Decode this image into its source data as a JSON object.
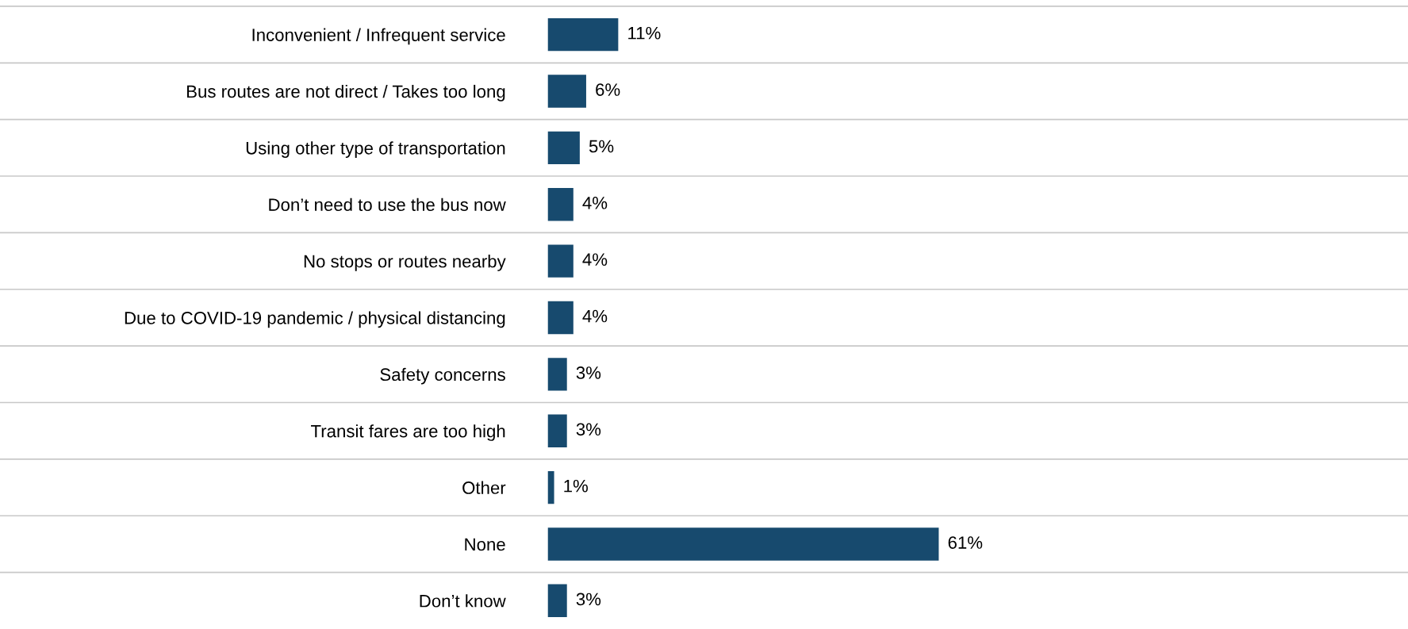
{
  "chart_data": {
    "type": "bar",
    "orientation": "horizontal",
    "categories": [
      "Inconvenient / Infrequent service",
      "Bus routes are not direct / Takes too long",
      "Using other type of transportation",
      "Don’t need to use the bus now",
      "No stops or routes nearby",
      "Due to COVID-19 pandemic / physical distancing",
      "Safety concerns",
      "Transit fares are too high",
      "Other",
      "None",
      "Don’t know"
    ],
    "values": [
      11,
      6,
      5,
      4,
      4,
      4,
      3,
      3,
      1,
      61,
      3
    ],
    "value_labels": [
      "11%",
      "6%",
      "5%",
      "4%",
      "4%",
      "4%",
      "3%",
      "3%",
      "1%",
      "61%",
      "3%"
    ],
    "color": "#174a6e",
    "grid": "y",
    "tick_labels": "y"
  }
}
